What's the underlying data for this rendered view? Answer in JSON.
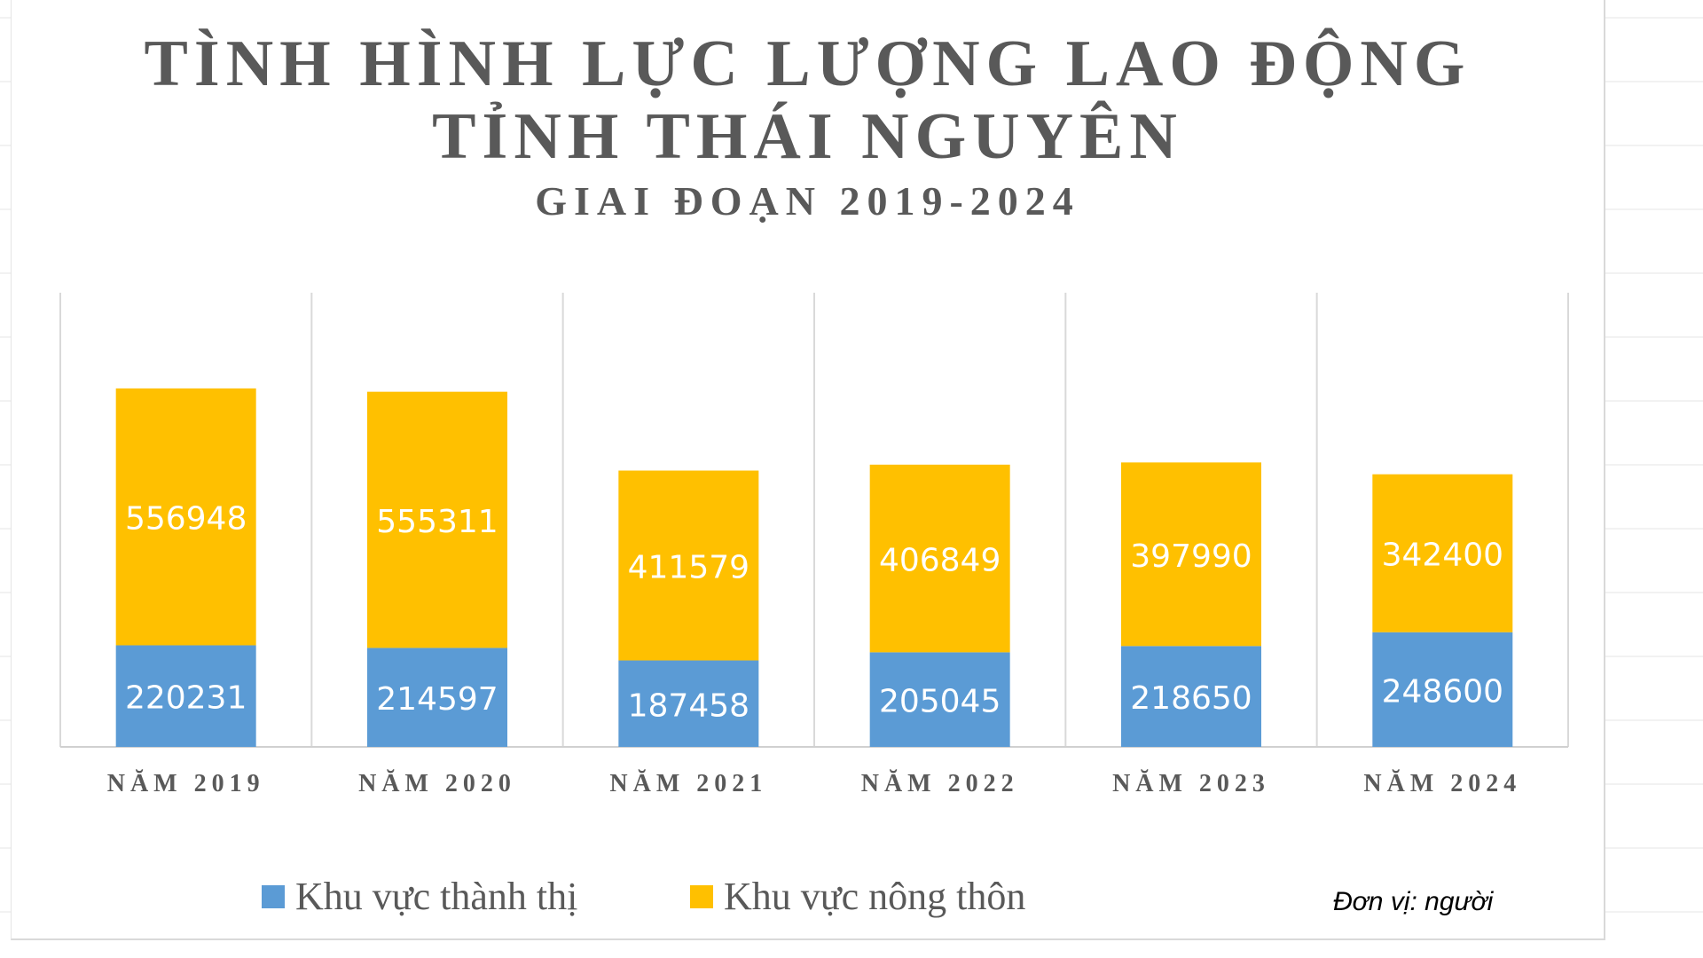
{
  "chart_data": {
    "type": "bar",
    "stacked": true,
    "title_line1": "TÌNH HÌNH LỰC LƯỢNG LAO ĐỘNG",
    "title_line2": "TỈNH THÁI NGUYÊN",
    "subtitle": "GIAI ĐOẠN 2019-2024",
    "categories": [
      "NĂM 2019",
      "NĂM 2020",
      "NĂM 2021",
      "NĂM 2022",
      "NĂM 2023",
      "NĂM 2024"
    ],
    "series": [
      {
        "name": "Khu vực thành thị",
        "color": "#5b9bd5",
        "values": [
          220231,
          214597,
          187458,
          205045,
          218650,
          248600
        ]
      },
      {
        "name": "Khu vực nông thôn",
        "color": "#ffc000",
        "values": [
          556948,
          555311,
          411579,
          406849,
          397990,
          342400
        ]
      }
    ],
    "ylim": [
      0,
      1000000
    ],
    "legend_position": "bottom",
    "grid": "vertical-separators",
    "unit_note": "Đơn vị: người"
  }
}
